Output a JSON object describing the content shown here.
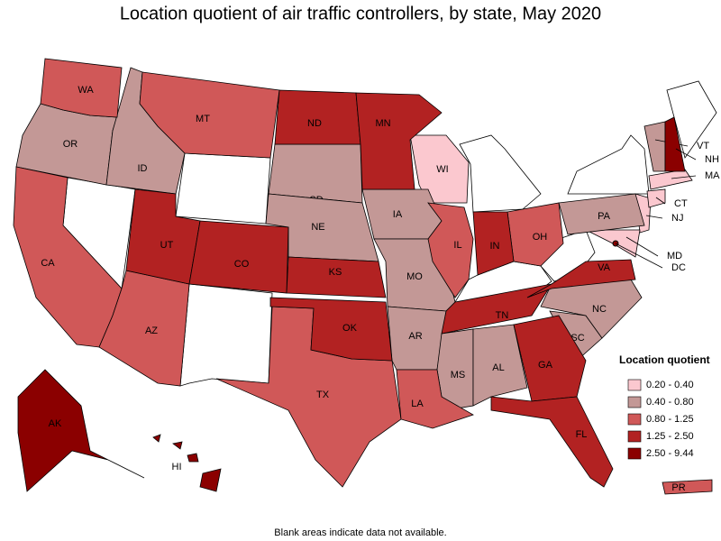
{
  "title": "Location quotient of air traffic controllers, by state, May 2020",
  "legend": {
    "title": "Location quotient",
    "items": [
      {
        "label": "0.20 - 0.40",
        "color": "#fbc8cf",
        "states": [
          "WI",
          "NJ",
          "CT",
          "MA",
          "MD"
        ]
      },
      {
        "label": "0.40 - 0.80",
        "color": "#c39896",
        "states": [
          "OR",
          "ID",
          "SD",
          "NE",
          "IA",
          "MO",
          "AR",
          "MS",
          "AL",
          "SC",
          "NC",
          "PA",
          "VT"
        ]
      },
      {
        "label": "0.80 - 1.25",
        "color": "#d05858",
        "states": [
          "WA",
          "CA",
          "AZ",
          "MT",
          "TX",
          "LA",
          "IL",
          "OH",
          "PR"
        ]
      },
      {
        "label": "1.25 - 2.50",
        "color": "#b22222",
        "states": [
          "UT",
          "CO",
          "ND",
          "MN",
          "KS",
          "OK",
          "IN",
          "TN",
          "GA",
          "FL",
          "VA"
        ]
      },
      {
        "label": "2.50 - 9.44",
        "color": "#8b0000",
        "states": [
          "AK",
          "HI",
          "NH",
          "DC"
        ]
      }
    ]
  },
  "note": "Blank areas indicate data not available."
}
